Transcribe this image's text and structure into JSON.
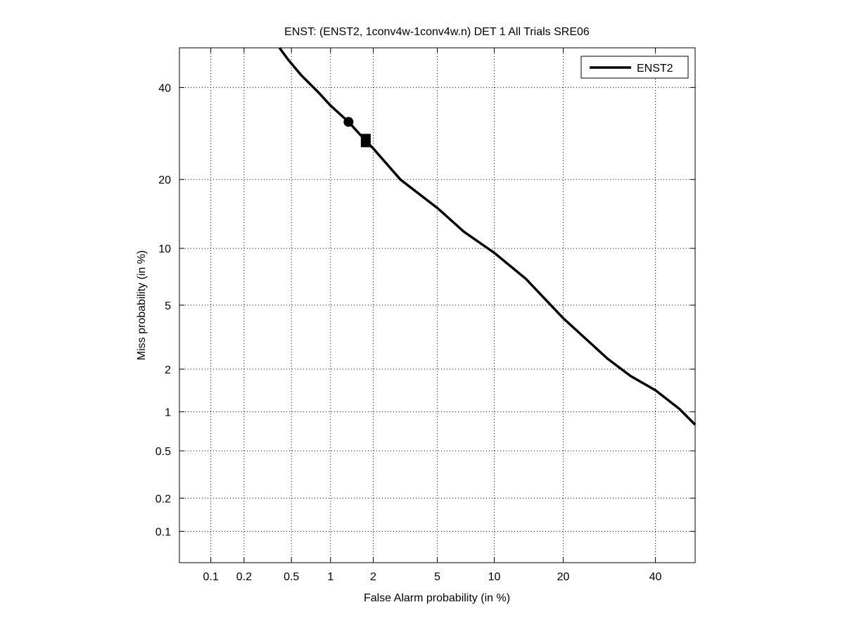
{
  "chart_data": {
    "type": "line",
    "scale": "normal-deviate (DET)",
    "title": "ENST: (ENST2, 1conv4w-1conv4w.n) DET 1 All Trials SRE06",
    "xlabel": "False Alarm probability (in %)",
    "ylabel": "Miss probability (in %)",
    "xlim": [
      0.05,
      50
    ],
    "ylim": [
      0.05,
      50
    ],
    "xticks": [
      0.1,
      0.2,
      0.5,
      1,
      2,
      5,
      10,
      20,
      40
    ],
    "xtick_labels": [
      "0.1",
      "0.2",
      "0.5",
      "1",
      "2",
      "5",
      "10",
      "20",
      "40"
    ],
    "yticks": [
      0.1,
      0.2,
      0.5,
      1,
      2,
      5,
      10,
      20,
      40
    ],
    "ytick_labels": [
      "0.1",
      "0.2",
      "0.5",
      "1",
      "2",
      "5",
      "10",
      "20",
      "40"
    ],
    "grid": true,
    "legend_position": "top-right",
    "series": [
      {
        "name": "ENST2",
        "color": "#000000",
        "x": [
          0.4,
          0.47,
          0.6,
          0.8,
          1.0,
          1.35,
          1.78,
          2.0,
          3.0,
          5.0,
          7.0,
          10.0,
          14.0,
          20.0,
          24.0,
          28.8,
          34.0,
          40.0,
          46.0,
          50.0
        ],
        "y": [
          50,
          47,
          43,
          39,
          35.6,
          31.8,
          27.6,
          26,
          20,
          15.3,
          12,
          9.5,
          7,
          4.2,
          3.2,
          2.35,
          1.8,
          1.43,
          1.05,
          0.8
        ]
      }
    ],
    "markers": [
      {
        "shape": "circle",
        "x": 1.35,
        "y": 31.8
      },
      {
        "shape": "square",
        "x": 1.78,
        "y": 27.6
      }
    ]
  }
}
